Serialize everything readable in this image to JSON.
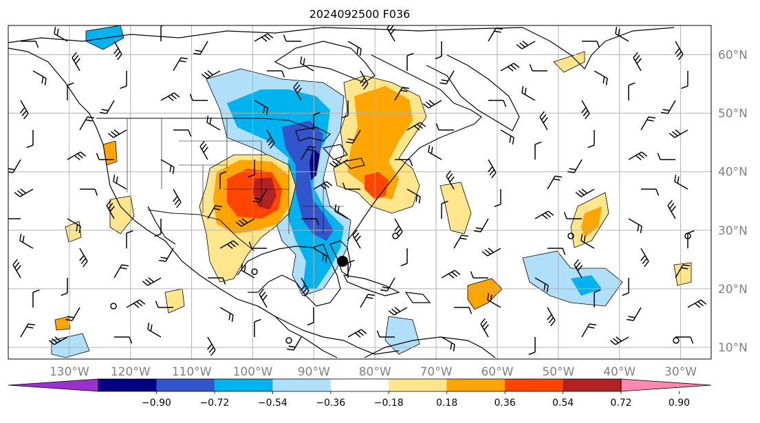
{
  "title": "2024092500 F036",
  "map": {
    "projection": "plate-carree",
    "lon_range": [
      -140,
      -25
    ],
    "lat_range": [
      8,
      65
    ],
    "gridlines": true,
    "lon_ticks": [
      {
        "value": -130,
        "label": "130°W"
      },
      {
        "value": -120,
        "label": "120°W"
      },
      {
        "value": -110,
        "label": "110°W"
      },
      {
        "value": -100,
        "label": "100°W"
      },
      {
        "value": -90,
        "label": "90°W"
      },
      {
        "value": -80,
        "label": "80°W"
      },
      {
        "value": -70,
        "label": "70°W"
      },
      {
        "value": -60,
        "label": "60°W"
      },
      {
        "value": -50,
        "label": "50°W"
      },
      {
        "value": -40,
        "label": "40°W"
      },
      {
        "value": -30,
        "label": "30°W"
      }
    ],
    "lat_ticks": [
      {
        "value": 60,
        "label": "60°N"
      },
      {
        "value": 50,
        "label": "50°N"
      },
      {
        "value": 40,
        "label": "40°N"
      },
      {
        "value": 30,
        "label": "30°N"
      },
      {
        "value": 20,
        "label": "20°N"
      },
      {
        "value": 10,
        "label": "10°N"
      }
    ],
    "storm_marker": {
      "lon": -85.3,
      "lat": 24.7
    }
  },
  "colorbar": {
    "extend": "both",
    "ticks": [
      "−0.90",
      "−0.72",
      "−0.54",
      "−0.36",
      "−0.18",
      "0.18",
      "0.36",
      "0.54",
      "0.72",
      "0.90"
    ],
    "colors": [
      "#9932cc",
      "#000080",
      "#3355cc",
      "#00b2ee",
      "#b0dffa",
      "#ffffff",
      "#ffe68c",
      "#ffa500",
      "#ff4500",
      "#b22222",
      "#ff88b0"
    ]
  },
  "colors": {
    "grid": "#b0b0b0",
    "coast": "#000000",
    "tick_label": "#808080"
  }
}
